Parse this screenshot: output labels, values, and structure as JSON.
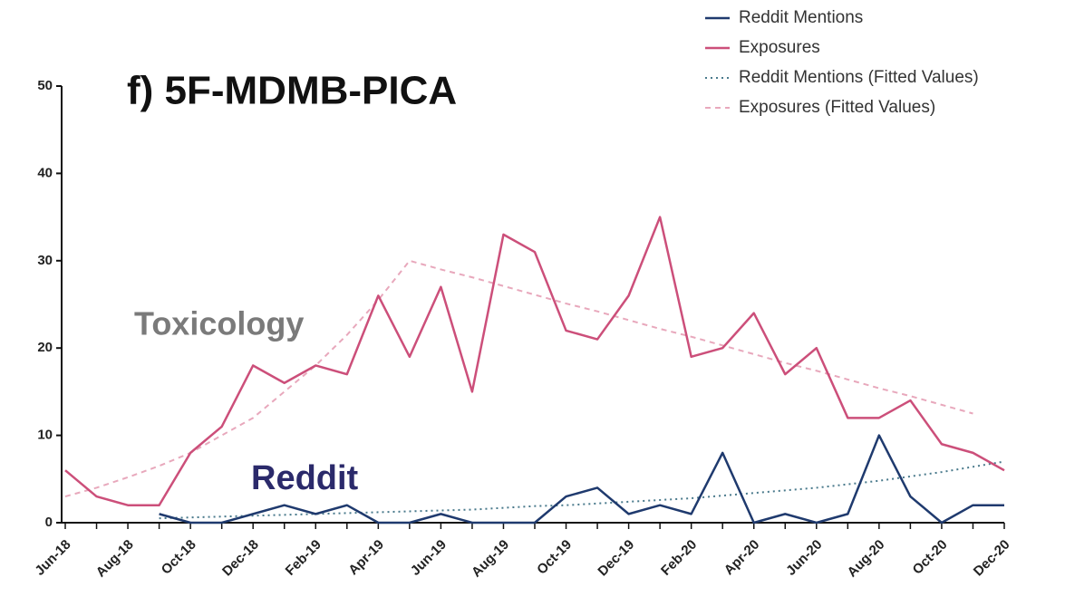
{
  "chart_data": {
    "type": "line",
    "title": "f) 5F-MDMB-PICA",
    "annotations": [
      {
        "text": "Toxicology",
        "color": "#7a7a7a"
      },
      {
        "text": "Reddit",
        "color": "#2b2a6b"
      }
    ],
    "categories": [
      "Jun-18",
      null,
      "Aug-18",
      null,
      "Oct-18",
      null,
      "Dec-18",
      null,
      "Feb-19",
      null,
      "Apr-19",
      null,
      "Jun-19",
      null,
      "Aug-19",
      null,
      "Oct-19",
      null,
      "Dec-19",
      null,
      "Feb-20",
      null,
      "Apr-20",
      null,
      "Jun-20",
      null,
      "Aug-20",
      null,
      "Oct-20",
      null,
      "Dec-20"
    ],
    "series": [
      {
        "name": "Reddit Mentions",
        "color": "#1f3a6e",
        "style": "solid",
        "values": [
          null,
          null,
          null,
          1,
          0,
          0,
          1,
          2,
          1,
          2,
          0,
          0,
          1,
          0,
          0,
          0,
          3,
          4,
          1,
          2,
          1,
          8,
          0,
          1,
          0,
          1,
          10,
          3,
          0,
          2,
          2
        ]
      },
      {
        "name": "Exposures",
        "color": "#cc4f7a",
        "style": "solid",
        "values": [
          6,
          3,
          2,
          2,
          8,
          11,
          18,
          16,
          18,
          17,
          26,
          19,
          27,
          15,
          33,
          31,
          22,
          21,
          26,
          35,
          19,
          20,
          24,
          17,
          20,
          12,
          12,
          14,
          9,
          8,
          6
        ]
      },
      {
        "name": "Reddit Mentions (Fitted Values)",
        "color": "#4a7a8c",
        "style": "dotted",
        "values": [
          null,
          null,
          null,
          0.5,
          0.6,
          0.7,
          0.8,
          0.9,
          1.0,
          1.1,
          1.2,
          1.3,
          1.4,
          1.5,
          1.7,
          1.9,
          2.0,
          2.2,
          2.4,
          2.6,
          2.8,
          3.1,
          3.4,
          3.7,
          4.0,
          4.4,
          4.8,
          5.3,
          5.8,
          6.4,
          7.0
        ]
      },
      {
        "name": "Exposures (Fitted Values)",
        "color": "#e8a8bc",
        "style": "dashed",
        "values": [
          3,
          4,
          5.2,
          6.5,
          8,
          10,
          12,
          15,
          18,
          21.5,
          25.5,
          30,
          29,
          28.1,
          27.1,
          26.1,
          25.1,
          24.2,
          23.2,
          22.2,
          21.3,
          20.3,
          19.3,
          18.3,
          17.4,
          16.4,
          15.4,
          14.5,
          13.5,
          12.5,
          null
        ]
      }
    ],
    "ylim": [
      0,
      50
    ],
    "yticks": [
      0,
      10,
      20,
      30,
      40,
      50
    ],
    "legend": "top-right",
    "grid": false
  }
}
